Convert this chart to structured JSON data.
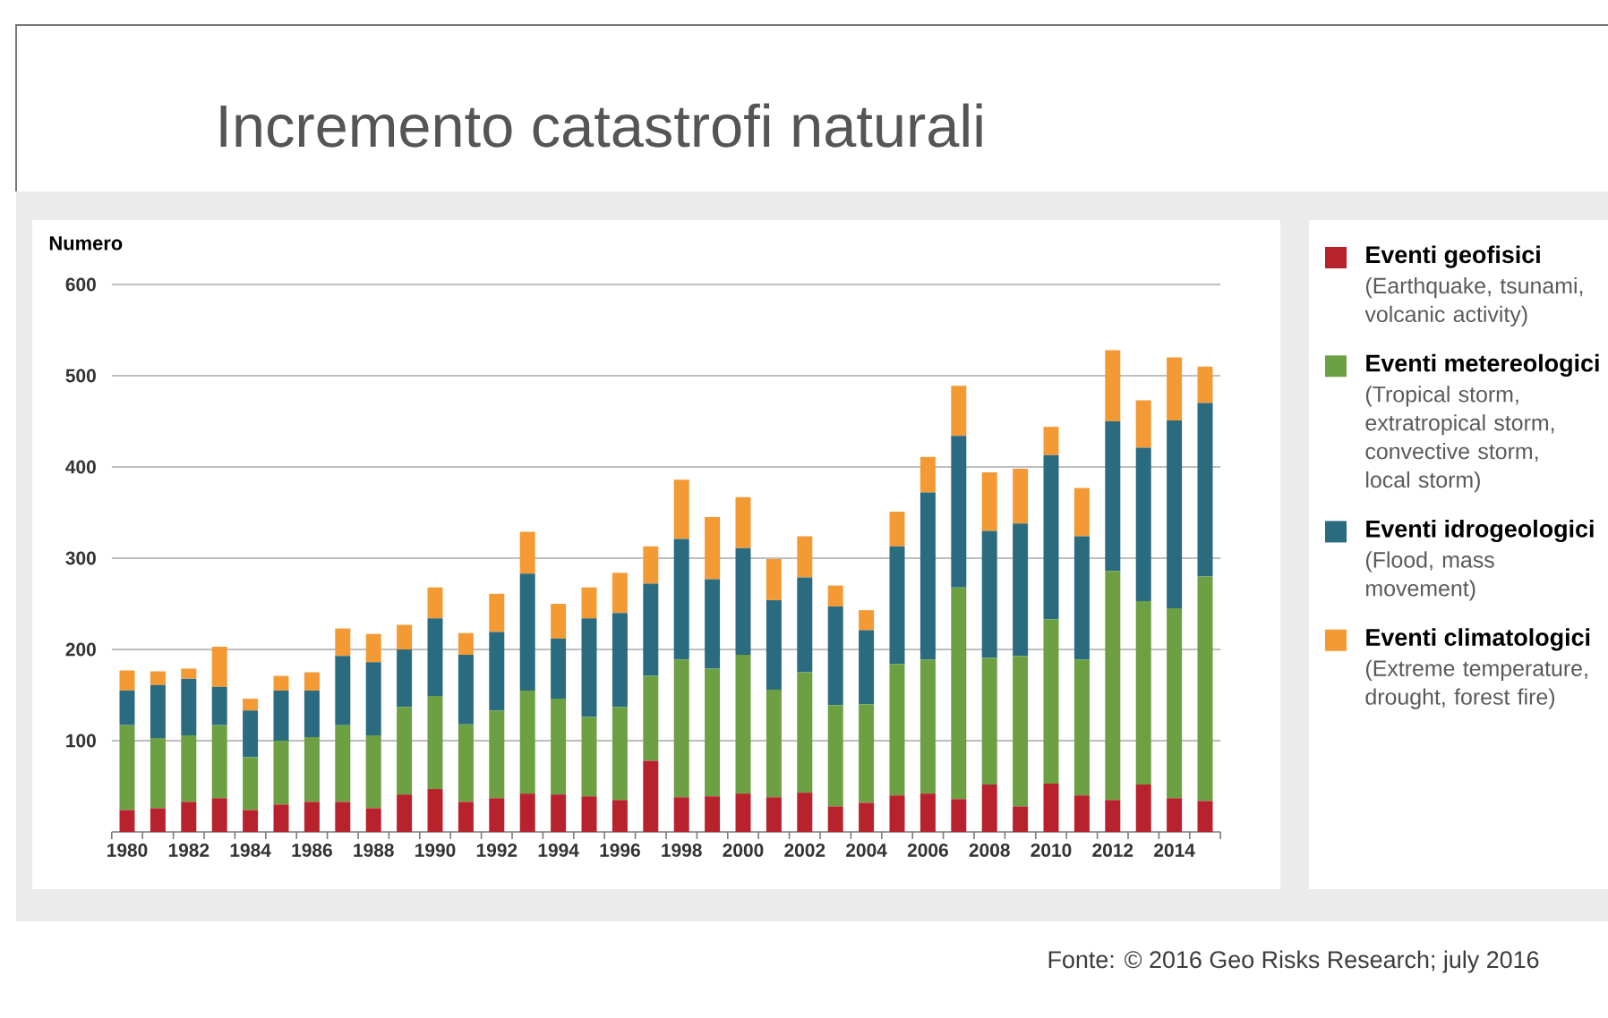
{
  "chart_data": {
    "type": "bar",
    "stacked": true,
    "title": "Incremento catastrofi naturali",
    "ylabel": "Numero",
    "categories": [
      "1980",
      null,
      "1982",
      null,
      "1984",
      null,
      "1986",
      null,
      "1988",
      null,
      "1990",
      null,
      "1992",
      null,
      "1994",
      null,
      "1996",
      null,
      "1998",
      null,
      "2000",
      null,
      "2002",
      null,
      "2004",
      null,
      "2006",
      null,
      "2008",
      null,
      "2010",
      null,
      "2012",
      null,
      "2014",
      null
    ],
    "series": [
      {
        "name": "Eventi geofisici",
        "color": "#b8222d",
        "values": [
          24,
          26,
          33,
          37,
          24,
          30,
          33,
          33,
          26,
          41,
          47,
          33,
          37,
          42,
          41,
          39,
          35,
          78,
          38,
          39,
          42,
          38,
          43,
          28,
          32,
          40,
          42,
          36,
          52,
          28,
          53,
          40,
          35,
          52,
          37,
          34
        ]
      },
      {
        "name": "Eventi metereologici",
        "color": "#6ca043",
        "values": [
          93,
          77,
          73,
          80,
          58,
          70,
          71,
          84,
          80,
          96,
          102,
          85,
          96,
          113,
          105,
          87,
          102,
          93,
          151,
          140,
          152,
          118,
          132,
          111,
          108,
          144,
          147,
          232,
          139,
          165,
          180,
          149,
          251,
          201,
          208,
          246
        ]
      },
      {
        "name": "Eventi idrogeologici",
        "color": "#2b6b80",
        "values": [
          38,
          58,
          62,
          42,
          51,
          55,
          51,
          76,
          80,
          63,
          85,
          76,
          86,
          128,
          66,
          108,
          103,
          101,
          132,
          98,
          117,
          98,
          104,
          108,
          81,
          129,
          183,
          166,
          139,
          145,
          180,
          135,
          164,
          168,
          206,
          190
        ]
      },
      {
        "name": "Eventi climatologici",
        "color": "#f39a34",
        "values": [
          22,
          15,
          11,
          44,
          13,
          16,
          20,
          30,
          31,
          27,
          34,
          24,
          42,
          46,
          38,
          34,
          44,
          41,
          65,
          68,
          56,
          45,
          45,
          23,
          22,
          38,
          39,
          55,
          64,
          60,
          31,
          53,
          78,
          52,
          69,
          40
        ]
      }
    ],
    "ylim": [
      0,
      600
    ],
    "yticks": [
      100,
      200,
      300,
      400,
      500,
      600
    ],
    "grid": "y",
    "legend": "right",
    "annotations": [
      "(Earthquake, tsunami, volcanic activity)",
      "(Tropical storm, extratropical storm, convective storm, local storm)",
      "(Flood, mass movement)",
      "(Extreme temperature, drought, forest fire)",
      "Fonte: © 2016 Geo Risks Research; july 2016"
    ]
  }
}
